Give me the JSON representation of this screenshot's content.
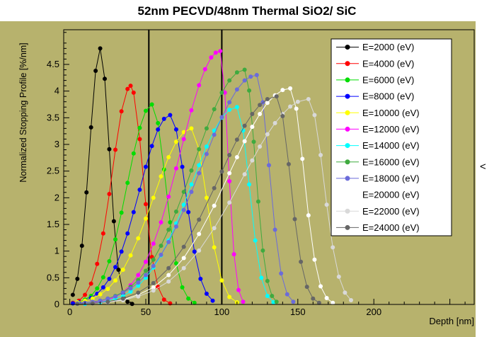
{
  "title": "52nm PECVD/48nm Thermal SiO2/ SiC",
  "window": {
    "chevron": "<"
  },
  "colors": {
    "canvas_bg": "#b7b26d",
    "page_bg": "#ffffff",
    "axis": "#000000",
    "boundary_line": "#000000",
    "legend_bg": "#ffffff",
    "legend_border": "#000000"
  },
  "chart_data": {
    "type": "line",
    "title": "52nm PECVD/48nm Thermal SiO2/ SiC",
    "xlabel": "Depth [nm]",
    "ylabel": "Normalized Stopping Profile [%/nm]",
    "xlim": [
      -4,
      266
    ],
    "ylim": [
      0,
      5.15
    ],
    "x_major_ticks": [
      0,
      50,
      100,
      150,
      200,
      250
    ],
    "x_tick_labels": [
      "0",
      "50",
      "100",
      "150",
      "200",
      ""
    ],
    "x_minor_step": 10,
    "y_major_ticks": [
      0,
      0.5,
      1,
      1.5,
      2,
      2.5,
      3,
      3.5,
      4,
      4.5
    ],
    "y_tick_labels": [
      "0",
      "0.5",
      "1",
      "1.5",
      "2",
      "2.5",
      "3",
      "3.5",
      "4",
      "4.5"
    ],
    "y_minor_step": 0.1,
    "grid": false,
    "legend_position": "top-right",
    "boundary_lines_x": [
      52,
      100
    ],
    "series": [
      {
        "id": "e2000",
        "label": "E=2000 (eV)",
        "color": "#000000",
        "points": [
          [
            2,
            0.18
          ],
          [
            5,
            0.48
          ],
          [
            8,
            1.1
          ],
          [
            11,
            2.1
          ],
          [
            14,
            3.32
          ],
          [
            17,
            4.38
          ],
          [
            20,
            4.8
          ],
          [
            23,
            4.23
          ],
          [
            26,
            2.91
          ],
          [
            29,
            1.56
          ],
          [
            32,
            0.65
          ],
          [
            35,
            0.21
          ],
          [
            38,
            0.05
          ],
          [
            41,
            0.01
          ]
        ]
      },
      {
        "id": "e4000",
        "label": "E=4000 (eV)",
        "color": "#ff0000",
        "points": [
          [
            2,
            0.03
          ],
          [
            6,
            0.07
          ],
          [
            10,
            0.18
          ],
          [
            14,
            0.39
          ],
          [
            18,
            0.76
          ],
          [
            22,
            1.33
          ],
          [
            26,
            2.07
          ],
          [
            30,
            2.9
          ],
          [
            34,
            3.62
          ],
          [
            38,
            4.04
          ],
          [
            40,
            4.1
          ],
          [
            42,
            3.97
          ],
          [
            46,
            3.1
          ],
          [
            50,
            1.88
          ],
          [
            54,
            0.89
          ],
          [
            58,
            0.33
          ],
          [
            62,
            0.09
          ],
          [
            66,
            0.02
          ]
        ]
      },
      {
        "id": "e6000",
        "label": "E=6000 (eV)",
        "color": "#00dd00",
        "points": [
          [
            2,
            0.02
          ],
          [
            6,
            0.04
          ],
          [
            10,
            0.09
          ],
          [
            14,
            0.16
          ],
          [
            18,
            0.3
          ],
          [
            22,
            0.51
          ],
          [
            26,
            0.81
          ],
          [
            30,
            1.22
          ],
          [
            34,
            1.72
          ],
          [
            38,
            2.28
          ],
          [
            42,
            2.83
          ],
          [
            46,
            3.31
          ],
          [
            50,
            3.63
          ],
          [
            54,
            3.75
          ],
          [
            58,
            3.4
          ],
          [
            62,
            2.53
          ],
          [
            66,
            1.54
          ],
          [
            70,
            0.77
          ],
          [
            74,
            0.32
          ],
          [
            78,
            0.11
          ],
          [
            82,
            0.03
          ]
        ]
      },
      {
        "id": "e8000",
        "label": "E=8000 (eV)",
        "color": "#0000ff",
        "points": [
          [
            2,
            0.02
          ],
          [
            6,
            0.04
          ],
          [
            10,
            0.07
          ],
          [
            14,
            0.12
          ],
          [
            18,
            0.2
          ],
          [
            22,
            0.32
          ],
          [
            26,
            0.48
          ],
          [
            30,
            0.7
          ],
          [
            34,
            0.99
          ],
          [
            38,
            1.33
          ],
          [
            42,
            1.73
          ],
          [
            46,
            2.15
          ],
          [
            50,
            2.58
          ],
          [
            54,
            2.97
          ],
          [
            58,
            3.28
          ],
          [
            62,
            3.48
          ],
          [
            66,
            3.55
          ],
          [
            70,
            3.28
          ],
          [
            74,
            2.58
          ],
          [
            78,
            1.73
          ],
          [
            82,
            0.99
          ],
          [
            86,
            0.48
          ],
          [
            90,
            0.2
          ],
          [
            94,
            0.07
          ]
        ]
      },
      {
        "id": "e10000",
        "label": "E=10000 (eV)",
        "color": "#ffff00",
        "points": [
          [
            5,
            0.04
          ],
          [
            10,
            0.07
          ],
          [
            15,
            0.11
          ],
          [
            20,
            0.19
          ],
          [
            25,
            0.29
          ],
          [
            30,
            0.45
          ],
          [
            35,
            0.65
          ],
          [
            40,
            0.92
          ],
          [
            45,
            1.24
          ],
          [
            50,
            1.61
          ],
          [
            55,
            2.0
          ],
          [
            60,
            2.4
          ],
          [
            65,
            2.76
          ],
          [
            70,
            3.05
          ],
          [
            75,
            3.23
          ],
          [
            80,
            3.3
          ],
          [
            85,
            2.91
          ],
          [
            90,
            2.0
          ],
          [
            95,
            1.07
          ],
          [
            100,
            0.45
          ],
          [
            105,
            0.14
          ],
          [
            110,
            0.04
          ]
        ]
      },
      {
        "id": "e12000",
        "label": "E=12000 (eV)",
        "color": "#ff00ff",
        "points": [
          [
            5,
            0.01
          ],
          [
            10,
            0.01
          ],
          [
            15,
            0.03
          ],
          [
            20,
            0.05
          ],
          [
            25,
            0.08
          ],
          [
            30,
            0.14
          ],
          [
            35,
            0.23
          ],
          [
            40,
            0.36
          ],
          [
            45,
            0.55
          ],
          [
            50,
            0.8
          ],
          [
            55,
            1.14
          ],
          [
            60,
            1.54
          ],
          [
            65,
            2.02
          ],
          [
            70,
            2.55
          ],
          [
            75,
            3.1
          ],
          [
            80,
            3.64
          ],
          [
            85,
            4.11
          ],
          [
            89,
            4.41
          ],
          [
            93,
            4.63
          ],
          [
            96,
            4.72
          ],
          [
            99,
            4.75
          ],
          [
            102,
            3.97
          ],
          [
            105,
            2.31
          ],
          [
            108,
            0.94
          ],
          [
            111,
            0.27
          ],
          [
            114,
            0.05
          ]
        ]
      },
      {
        "id": "e14000",
        "label": "E=14000 (eV)",
        "color": "#00ffff",
        "points": [
          [
            5,
            0.01
          ],
          [
            10,
            0.01
          ],
          [
            15,
            0.02
          ],
          [
            20,
            0.04
          ],
          [
            25,
            0.07
          ],
          [
            30,
            0.11
          ],
          [
            35,
            0.16
          ],
          [
            40,
            0.24
          ],
          [
            45,
            0.35
          ],
          [
            50,
            0.5
          ],
          [
            55,
            0.69
          ],
          [
            60,
            0.92
          ],
          [
            65,
            1.2
          ],
          [
            70,
            1.52
          ],
          [
            75,
            1.87
          ],
          [
            80,
            2.25
          ],
          [
            85,
            2.61
          ],
          [
            90,
            2.96
          ],
          [
            95,
            3.26
          ],
          [
            100,
            3.5
          ],
          [
            105,
            3.65
          ],
          [
            110,
            3.7
          ],
          [
            114,
            3.26
          ],
          [
            118,
            2.25
          ],
          [
            122,
            1.2
          ],
          [
            126,
            0.5
          ],
          [
            130,
            0.16
          ],
          [
            134,
            0.04
          ]
        ]
      },
      {
        "id": "e16000",
        "label": "E=16000 (eV)",
        "color": "#3faa3f",
        "points": [
          [
            5,
            0.02
          ],
          [
            10,
            0.03
          ],
          [
            15,
            0.04
          ],
          [
            20,
            0.07
          ],
          [
            25,
            0.11
          ],
          [
            30,
            0.16
          ],
          [
            35,
            0.23
          ],
          [
            40,
            0.33
          ],
          [
            45,
            0.46
          ],
          [
            50,
            0.63
          ],
          [
            55,
            0.84
          ],
          [
            60,
            1.1
          ],
          [
            65,
            1.4
          ],
          [
            70,
            1.74
          ],
          [
            75,
            2.11
          ],
          [
            80,
            2.51
          ],
          [
            85,
            2.91
          ],
          [
            90,
            3.3
          ],
          [
            95,
            3.66
          ],
          [
            100,
            3.97
          ],
          [
            105,
            4.2
          ],
          [
            110,
            4.35
          ],
          [
            115,
            4.4
          ],
          [
            118,
            4.01
          ],
          [
            121,
            3.05
          ],
          [
            124,
            1.93
          ],
          [
            127,
            1.01
          ],
          [
            130,
            0.44
          ],
          [
            133,
            0.16
          ],
          [
            136,
            0.05
          ]
        ]
      },
      {
        "id": "e18000",
        "label": "E=18000 (eV)",
        "color": "#6b6bda",
        "points": [
          [
            5,
            0.02
          ],
          [
            10,
            0.03
          ],
          [
            15,
            0.05
          ],
          [
            20,
            0.07
          ],
          [
            25,
            0.11
          ],
          [
            30,
            0.15
          ],
          [
            35,
            0.22
          ],
          [
            40,
            0.3
          ],
          [
            45,
            0.41
          ],
          [
            50,
            0.55
          ],
          [
            55,
            0.72
          ],
          [
            60,
            0.93
          ],
          [
            65,
            1.17
          ],
          [
            70,
            1.46
          ],
          [
            75,
            1.77
          ],
          [
            80,
            2.11
          ],
          [
            85,
            2.46
          ],
          [
            90,
            2.82
          ],
          [
            95,
            3.18
          ],
          [
            100,
            3.51
          ],
          [
            105,
            3.79
          ],
          [
            110,
            4.03
          ],
          [
            115,
            4.2
          ],
          [
            119,
            4.27
          ],
          [
            123,
            4.3
          ],
          [
            127,
            3.79
          ],
          [
            131,
            2.61
          ],
          [
            135,
            1.4
          ],
          [
            139,
            0.58
          ],
          [
            143,
            0.19
          ],
          [
            147,
            0.05
          ]
        ]
      },
      {
        "id": "e20000",
        "label": "E=20000 (eV)",
        "color": "#ffffff",
        "points": [
          [
            5,
            0.01
          ],
          [
            15,
            0.02
          ],
          [
            25,
            0.04
          ],
          [
            35,
            0.09
          ],
          [
            45,
            0.18
          ],
          [
            55,
            0.32
          ],
          [
            65,
            0.55
          ],
          [
            75,
            0.87
          ],
          [
            85,
            1.32
          ],
          [
            95,
            1.85
          ],
          [
            105,
            2.46
          ],
          [
            110,
            2.76
          ],
          [
            115,
            3.06
          ],
          [
            120,
            3.33
          ],
          [
            125,
            3.57
          ],
          [
            130,
            3.78
          ],
          [
            135,
            3.92
          ],
          [
            140,
            4.02
          ],
          [
            145,
            4.05
          ],
          [
            149,
            3.67
          ],
          [
            153,
            2.73
          ],
          [
            157,
            1.67
          ],
          [
            161,
            0.84
          ],
          [
            165,
            0.34
          ],
          [
            169,
            0.12
          ],
          [
            173,
            0.03
          ]
        ]
      },
      {
        "id": "e22000",
        "label": "E=22000 (eV)",
        "color": "#d9d9d9",
        "points": [
          [
            5,
            0.01
          ],
          [
            15,
            0.02
          ],
          [
            25,
            0.04
          ],
          [
            35,
            0.08
          ],
          [
            45,
            0.15
          ],
          [
            55,
            0.26
          ],
          [
            65,
            0.43
          ],
          [
            75,
            0.68
          ],
          [
            85,
            1.01
          ],
          [
            95,
            1.43
          ],
          [
            105,
            1.91
          ],
          [
            115,
            2.44
          ],
          [
            120,
            2.7
          ],
          [
            125,
            2.96
          ],
          [
            130,
            3.19
          ],
          [
            135,
            3.4
          ],
          [
            140,
            3.57
          ],
          [
            145,
            3.71
          ],
          [
            150,
            3.8
          ],
          [
            157,
            3.85
          ],
          [
            161,
            3.55
          ],
          [
            165,
            2.8
          ],
          [
            169,
            1.87
          ],
          [
            173,
            1.07
          ],
          [
            177,
            0.52
          ],
          [
            181,
            0.22
          ],
          [
            185,
            0.08
          ]
        ]
      },
      {
        "id": "e24000",
        "label": "E=24000 (eV)",
        "color": "#666666",
        "points": [
          [
            5,
            0.01
          ],
          [
            15,
            0.02
          ],
          [
            25,
            0.05
          ],
          [
            35,
            0.11
          ],
          [
            45,
            0.22
          ],
          [
            55,
            0.4
          ],
          [
            65,
            0.68
          ],
          [
            75,
            1.08
          ],
          [
            85,
            1.59
          ],
          [
            95,
            2.18
          ],
          [
            100,
            2.49
          ],
          [
            105,
            2.8
          ],
          [
            110,
            3.09
          ],
          [
            115,
            3.35
          ],
          [
            120,
            3.57
          ],
          [
            125,
            3.74
          ],
          [
            130,
            3.85
          ],
          [
            136,
            3.9
          ],
          [
            140,
            3.53
          ],
          [
            144,
            2.63
          ],
          [
            148,
            1.6
          ],
          [
            152,
            0.8
          ],
          [
            156,
            0.33
          ],
          [
            160,
            0.11
          ],
          [
            164,
            0.03
          ]
        ]
      }
    ]
  }
}
